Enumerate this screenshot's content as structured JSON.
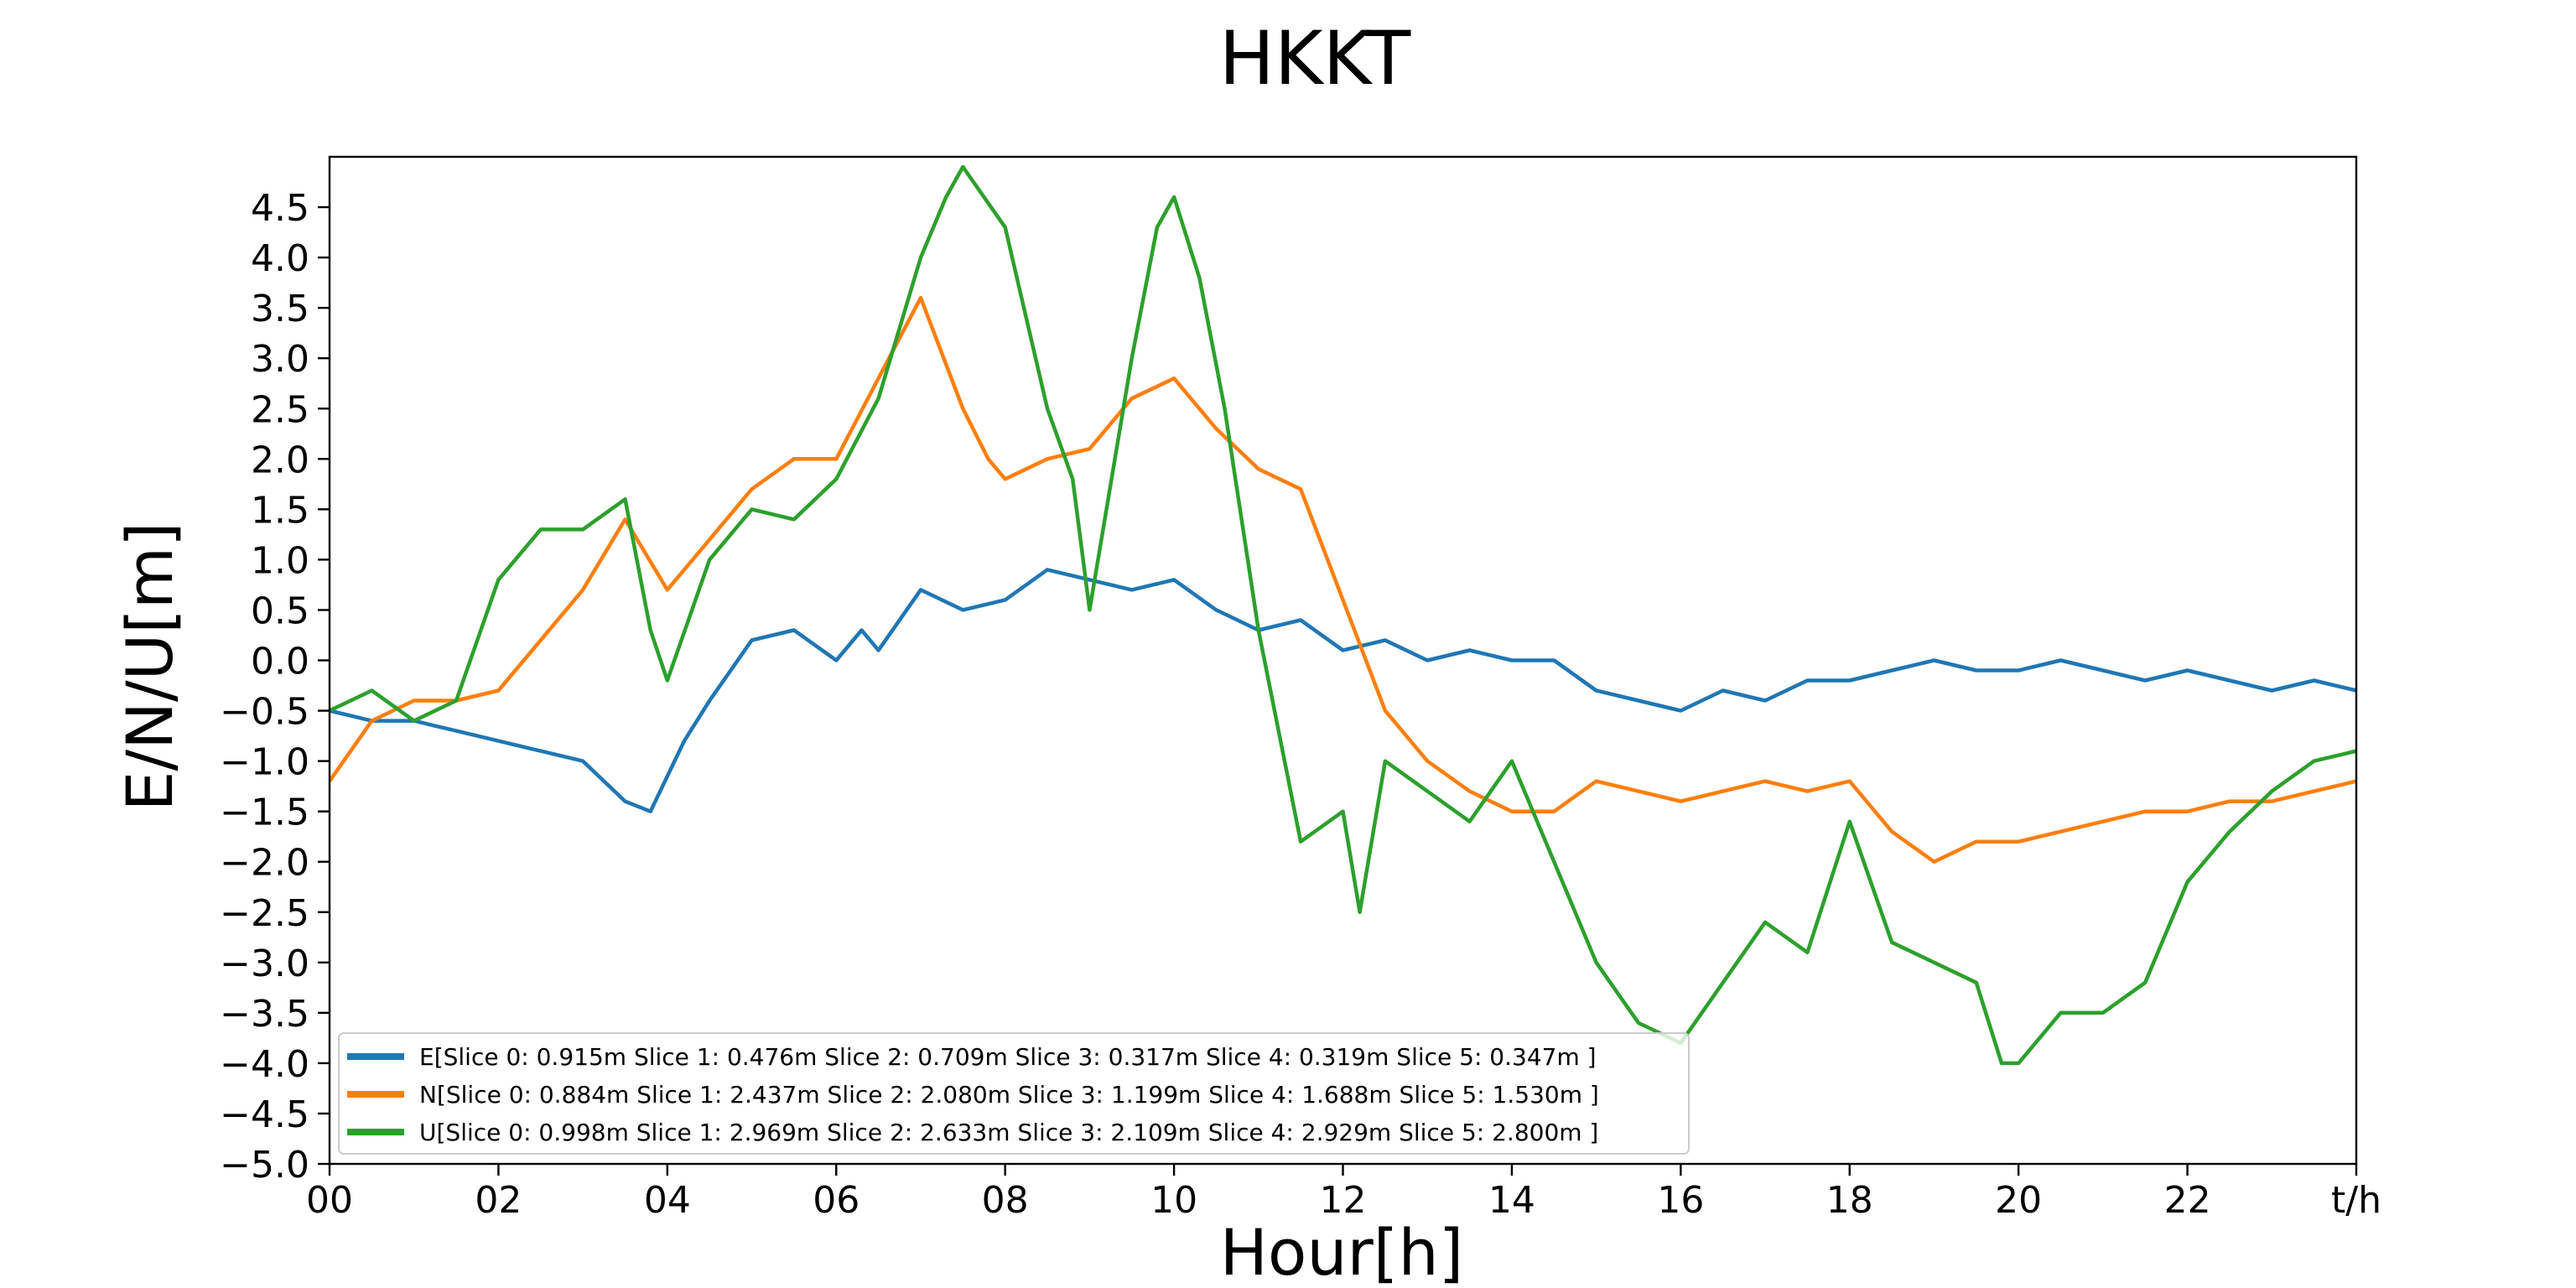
{
  "chart_data": {
    "type": "line",
    "title": "HKKT",
    "xlabel": "Hour[h]",
    "ylabel": "E/N/U[m]",
    "xlim": [
      0,
      24
    ],
    "ylim": [
      -5.0,
      5.0
    ],
    "grid": false,
    "legend_position": "lower-left",
    "x_ticks": [
      {
        "value": 0,
        "label": "00"
      },
      {
        "value": 2,
        "label": "02"
      },
      {
        "value": 4,
        "label": "04"
      },
      {
        "value": 6,
        "label": "06"
      },
      {
        "value": 8,
        "label": "08"
      },
      {
        "value": 10,
        "label": "10"
      },
      {
        "value": 12,
        "label": "12"
      },
      {
        "value": 14,
        "label": "14"
      },
      {
        "value": 16,
        "label": "16"
      },
      {
        "value": 18,
        "label": "18"
      },
      {
        "value": 20,
        "label": "20"
      },
      {
        "value": 22,
        "label": "22"
      },
      {
        "value": 24,
        "label": "t/h"
      }
    ],
    "y_ticks": [
      -5.0,
      -4.5,
      -4.0,
      -3.5,
      -3.0,
      -2.5,
      -2.0,
      -1.5,
      -1.0,
      -0.5,
      0.0,
      0.5,
      1.0,
      1.5,
      2.0,
      2.5,
      3.0,
      3.5,
      4.0,
      4.5
    ],
    "series": [
      {
        "name": "E[Slice 0: 0.915m Slice 1: 0.476m Slice 2: 0.709m Slice 3: 0.317m Slice 4: 0.319m Slice 5: 0.347m ]",
        "color": "#1f77b4",
        "x": [
          0,
          0.5,
          1,
          1.5,
          2,
          2.5,
          3,
          3.5,
          3.8,
          4.2,
          4.5,
          5,
          5.5,
          6,
          6.3,
          6.5,
          7,
          7.5,
          8,
          8.5,
          9,
          9.5,
          10,
          10.5,
          11,
          11.5,
          12,
          12.5,
          13,
          13.5,
          14,
          14.5,
          15,
          15.5,
          16,
          16.5,
          17,
          17.5,
          18,
          18.5,
          19,
          19.5,
          20,
          20.5,
          21,
          21.5,
          22,
          22.5,
          23,
          23.5,
          24
        ],
        "y": [
          -0.5,
          -0.6,
          -0.6,
          -0.7,
          -0.8,
          -0.9,
          -1.0,
          -1.4,
          -1.5,
          -0.8,
          -0.4,
          0.2,
          0.3,
          0.0,
          0.3,
          0.1,
          0.7,
          0.5,
          0.6,
          0.9,
          0.8,
          0.7,
          0.8,
          0.5,
          0.3,
          0.4,
          0.1,
          0.2,
          0.0,
          0.1,
          0.0,
          0.0,
          -0.3,
          -0.4,
          -0.5,
          -0.3,
          -0.4,
          -0.2,
          -0.2,
          -0.1,
          0.0,
          -0.1,
          -0.1,
          0.0,
          -0.1,
          -0.2,
          -0.1,
          -0.2,
          -0.3,
          -0.2,
          -0.3
        ]
      },
      {
        "name": "N[Slice 0: 0.884m Slice 1: 2.437m Slice 2: 2.080m Slice 3: 1.199m Slice 4: 1.688m Slice 5: 1.530m ]",
        "color": "#ff7f0e",
        "x": [
          0,
          0.5,
          1,
          1.5,
          2,
          2.5,
          3,
          3.5,
          4,
          4.5,
          5,
          5.5,
          6,
          6.5,
          7,
          7.5,
          7.8,
          8,
          8.5,
          9,
          9.5,
          10,
          10.5,
          11,
          11.5,
          12,
          12.5,
          13,
          13.5,
          14,
          14.5,
          15,
          15.5,
          16,
          16.5,
          17,
          17.5,
          18,
          18.5,
          19,
          19.5,
          20,
          20.5,
          21,
          21.5,
          22,
          22.5,
          23,
          23.5,
          24
        ],
        "y": [
          -1.2,
          -0.6,
          -0.4,
          -0.4,
          -0.3,
          0.2,
          0.7,
          1.4,
          0.7,
          1.2,
          1.7,
          2.0,
          2.0,
          2.8,
          3.6,
          2.5,
          2.0,
          1.8,
          2.0,
          2.1,
          2.6,
          2.8,
          2.3,
          1.9,
          1.7,
          0.6,
          -0.5,
          -1.0,
          -1.3,
          -1.5,
          -1.5,
          -1.2,
          -1.3,
          -1.4,
          -1.3,
          -1.2,
          -1.3,
          -1.2,
          -1.7,
          -2.0,
          -1.8,
          -1.8,
          -1.7,
          -1.6,
          -1.5,
          -1.5,
          -1.4,
          -1.4,
          -1.3,
          -1.2
        ]
      },
      {
        "name": "U[Slice 0: 0.998m Slice 1: 2.969m Slice 2: 2.633m Slice 3: 2.109m Slice 4: 2.929m Slice 5: 2.800m ]",
        "color": "#2ca02c",
        "x": [
          0,
          0.5,
          1,
          1.5,
          2,
          2.5,
          3,
          3.5,
          3.8,
          4,
          4.5,
          5,
          5.5,
          6,
          6.5,
          7,
          7.3,
          7.5,
          8,
          8.5,
          8.8,
          9,
          9.5,
          9.8,
          10,
          10.3,
          10.6,
          11,
          11.5,
          12,
          12.2,
          12.5,
          13,
          13.5,
          14,
          14.5,
          15,
          15.5,
          16,
          16.5,
          17,
          17.5,
          18,
          18.5,
          19,
          19.5,
          19.8,
          20,
          20.5,
          21,
          21.5,
          22,
          22.5,
          23,
          23.5,
          24
        ],
        "y": [
          -0.5,
          -0.3,
          -0.6,
          -0.4,
          0.8,
          1.3,
          1.3,
          1.6,
          0.3,
          -0.2,
          1.0,
          1.5,
          1.4,
          1.8,
          2.6,
          4.0,
          4.6,
          4.9,
          4.3,
          2.5,
          1.8,
          0.5,
          3.0,
          4.3,
          4.6,
          3.8,
          2.5,
          0.3,
          -1.8,
          -1.5,
          -2.5,
          -1.0,
          -1.3,
          -1.6,
          -1.0,
          -2.0,
          -3.0,
          -3.6,
          -3.8,
          -3.2,
          -2.6,
          -2.9,
          -1.6,
          -2.8,
          -3.0,
          -3.2,
          -4.0,
          -4.0,
          -3.5,
          -3.5,
          -3.2,
          -2.2,
          -1.7,
          -1.3,
          -1.0,
          -0.9
        ]
      }
    ]
  }
}
